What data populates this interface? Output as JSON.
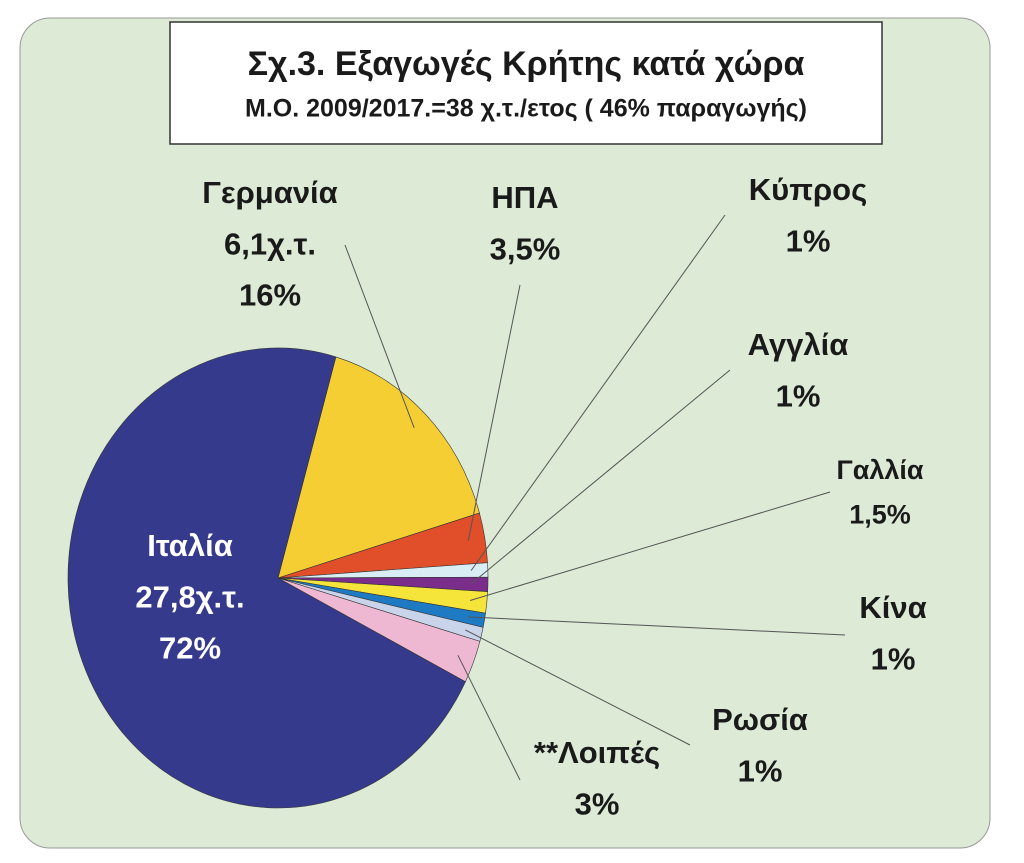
{
  "chart_data": {
    "type": "pie",
    "title": "Σχ.3. Εξαγωγές  Κρήτης κατά χώρα",
    "subtitle": "Μ.Ο. 2009/2017.=38 χ.τ./ετος  ( 46% παραγωγής)",
    "categories": [
      "Γερμανία",
      "ΗΠΑ",
      "Κύπρος",
      "Αγγλία",
      "Γαλλία",
      "Κίνα",
      "Ρωσία",
      "**Λοιπές",
      "Ιταλία"
    ],
    "values": [
      16,
      3.5,
      1,
      1,
      1.5,
      1,
      1,
      3,
      72
    ],
    "value_labels": [
      "16%",
      "3,5%",
      "1%",
      "1%",
      "1,5%",
      "1%",
      "1%",
      "3%",
      "72%"
    ],
    "quantity_labels": [
      "6,1χ.τ.",
      null,
      null,
      null,
      null,
      null,
      null,
      null,
      "27,8χ.τ."
    ],
    "colors": [
      "#f4ce33",
      "#e04f2a",
      "#d9edf5",
      "#7b2d8b",
      "#f5e53a",
      "#1f7ac4",
      "#c9d4ea",
      "#efb8d2",
      "#363a8c"
    ]
  }
}
